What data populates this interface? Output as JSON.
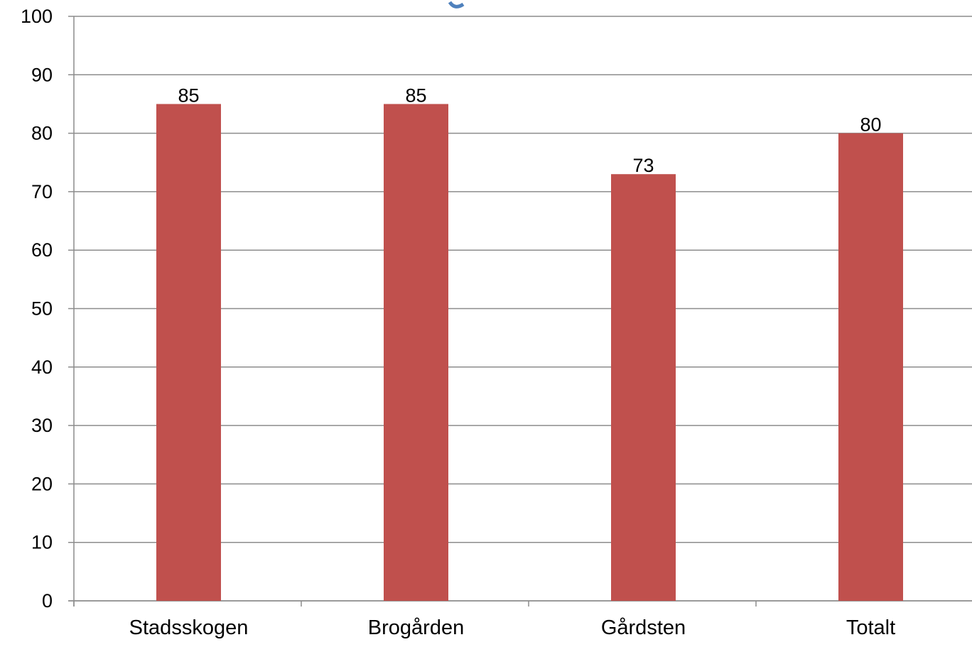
{
  "chart_data": {
    "type": "bar",
    "categories": [
      "Stadsskogen",
      "Brogården",
      "Gårdsten",
      "Totalt"
    ],
    "values": [
      85,
      85,
      73,
      80
    ],
    "data_labels": [
      "85",
      "85",
      "73",
      "80"
    ],
    "ylim": [
      0,
      100
    ],
    "yticks": [
      0,
      10,
      20,
      30,
      40,
      50,
      60,
      70,
      80,
      90,
      100
    ],
    "grid": true,
    "legend": "none",
    "title": "",
    "xlabel": "",
    "ylabel": "",
    "bar_color": "#c0504d",
    "grid_color": "#8c8c8c",
    "title_color": "#4f81bd"
  }
}
